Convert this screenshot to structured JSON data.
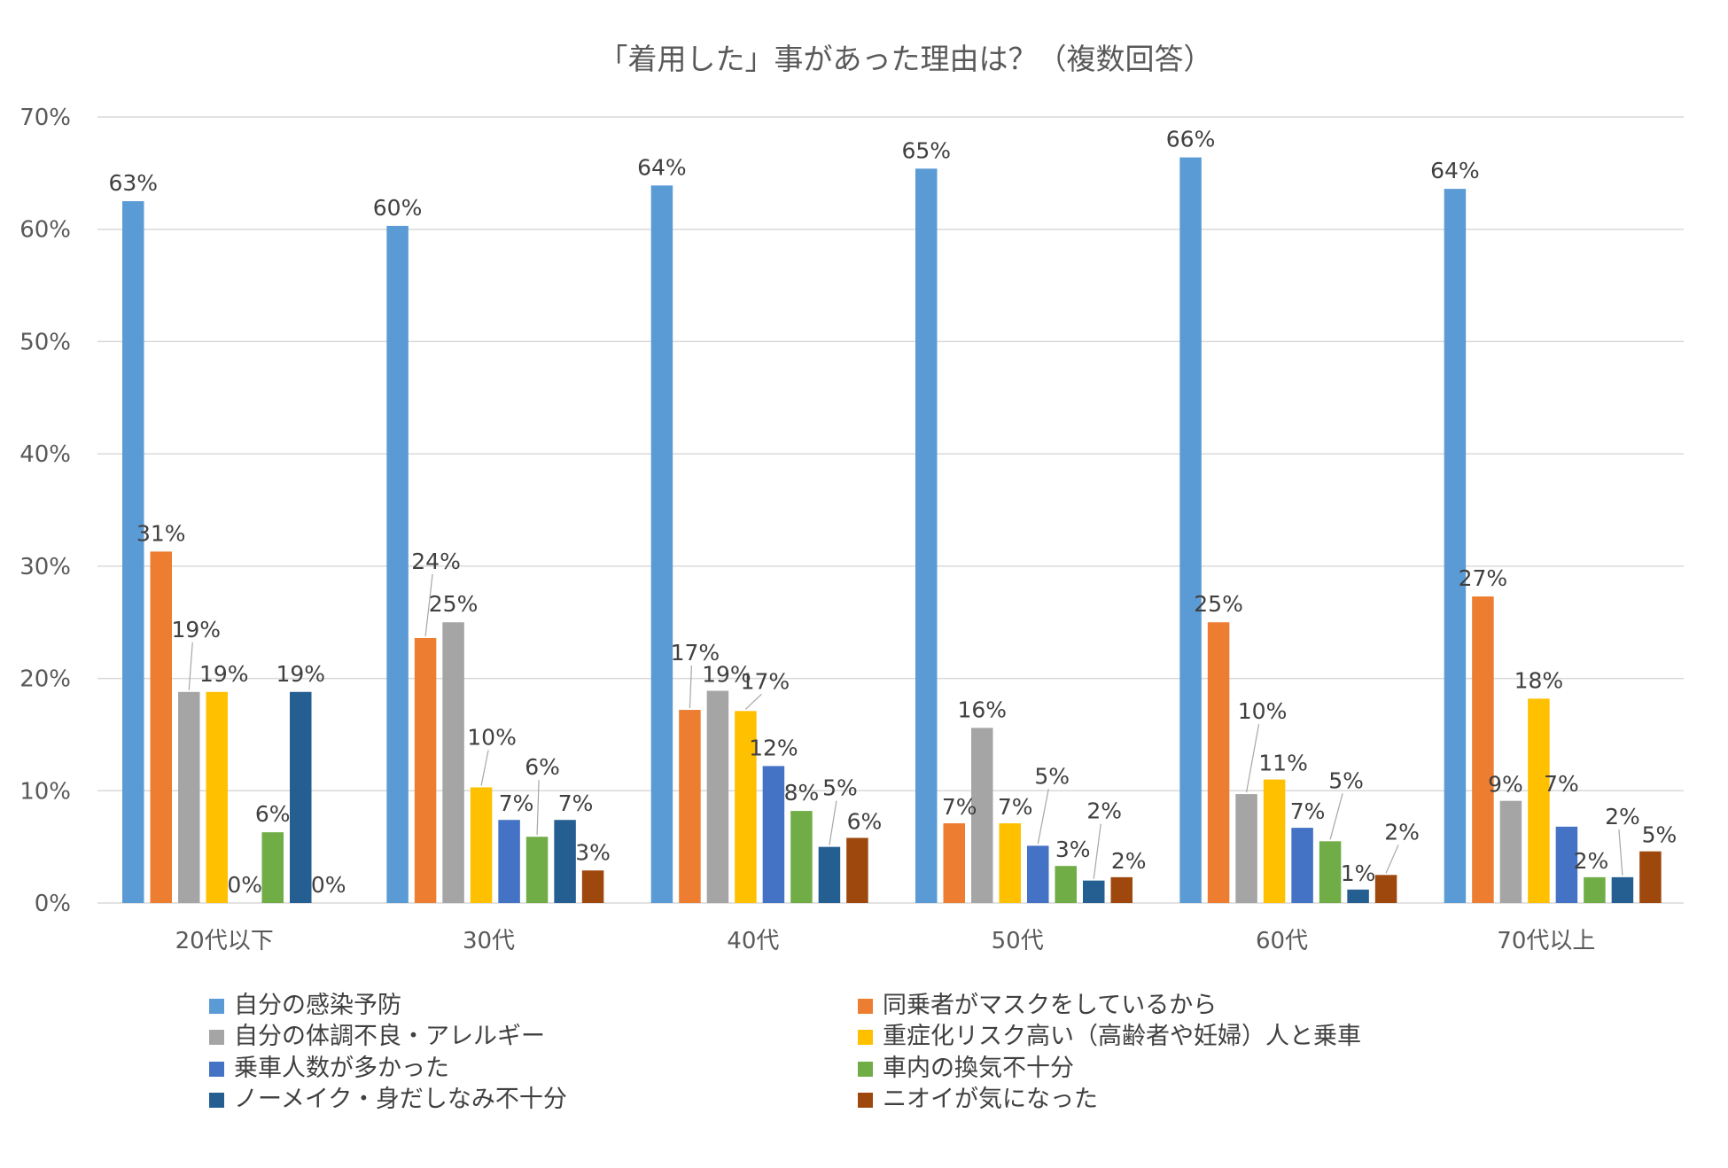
{
  "chart_data": {
    "type": "bar",
    "title": "「着用した」事があった理由は？（複数回答）",
    "categories": [
      "20代以下",
      "30代",
      "40代",
      "50代",
      "60代",
      "70代以上"
    ],
    "y_ticks": [
      "0%",
      "10%",
      "20%",
      "30%",
      "40%",
      "50%",
      "60%",
      "70%"
    ],
    "ylim": [
      0,
      70
    ],
    "grid": true,
    "legend_position": "bottom",
    "series": [
      {
        "name": "自分の感染予防",
        "color": "#5B9BD5",
        "values": [
          62.5,
          60.3,
          63.9,
          65.4,
          66.4,
          63.6
        ],
        "labels": [
          "63%",
          "60%",
          "64%",
          "65%",
          "66%",
          "64%"
        ]
      },
      {
        "name": "同乗者がマスクをしているから",
        "color": "#ED7D31",
        "values": [
          31.3,
          23.6,
          17.2,
          7.1,
          25.0,
          27.3
        ],
        "labels": [
          "31%",
          "24%",
          "17%",
          "7%",
          "25%",
          "27%"
        ]
      },
      {
        "name": "自分の体調不良・アレルギー",
        "color": "#A5A5A5",
        "values": [
          18.8,
          25.0,
          18.9,
          15.6,
          9.7,
          9.1
        ],
        "labels": [
          "19%",
          "25%",
          "19%",
          "16%",
          "10%",
          "9%"
        ]
      },
      {
        "name": "重症化リスク高い（高齢者や妊婦）人と乗車",
        "color": "#FFC000",
        "values": [
          18.8,
          10.3,
          17.1,
          7.1,
          11.0,
          18.2
        ],
        "labels": [
          "19%",
          "10%",
          "17%",
          "7%",
          "11%",
          "18%"
        ]
      },
      {
        "name": "乗車人数が多かった",
        "color": "#4472C4",
        "values": [
          0,
          7.4,
          12.2,
          5.1,
          6.7,
          6.8
        ],
        "labels": [
          "0%",
          "7%",
          "12%",
          "5%",
          "7%",
          "7%"
        ]
      },
      {
        "name": "車内の換気不十分",
        "color": "#70AD47",
        "values": [
          6.3,
          5.9,
          8.2,
          3.3,
          5.5,
          2.3
        ],
        "labels": [
          "6%",
          "6%",
          "8%",
          "3%",
          "5%",
          "2%"
        ]
      },
      {
        "name": "ノーメイク・身だしなみ不十分",
        "color": "#255E91",
        "values": [
          18.8,
          7.4,
          5.0,
          2.0,
          1.2,
          2.3
        ],
        "labels": [
          "19%",
          "7%",
          "5%",
          "2%",
          "1%",
          "2%"
        ]
      },
      {
        "name": "ニオイが気になった",
        "color": "#9E480E",
        "values": [
          0,
          2.9,
          5.8,
          2.3,
          2.5,
          4.6
        ],
        "labels": [
          "0%",
          "3%",
          "6%",
          "2%",
          "2%",
          "5%"
        ]
      }
    ]
  }
}
